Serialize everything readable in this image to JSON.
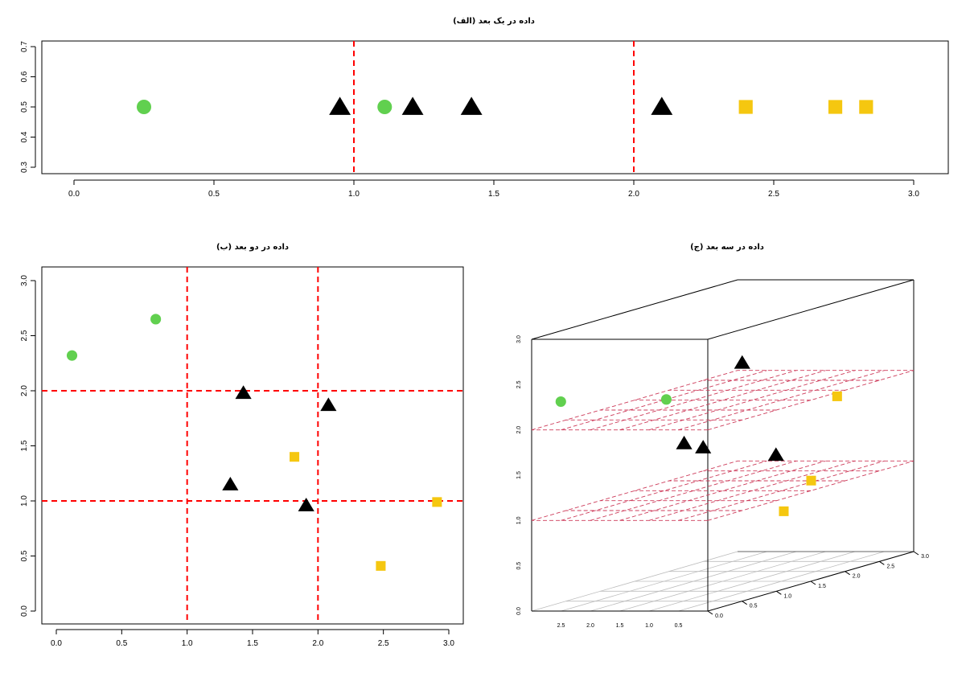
{
  "colors": {
    "group1": "#61d04f",
    "group2": "#000000",
    "group3": "#f5c710",
    "split": "#ff0000",
    "plane": "#cd3b5a"
  },
  "chart_data": [
    {
      "type": "scatter",
      "title": "داده در یک بعد (الف)",
      "xlabel": "",
      "ylabel": "",
      "xlim": [
        0,
        3
      ],
      "ylim": [
        0.3,
        0.7
      ],
      "xticks": [
        "0.0",
        "0.5",
        "1.0",
        "1.5",
        "2.0",
        "2.5",
        "3.0"
      ],
      "yticks": [
        "0.3",
        "0.4",
        "0.5",
        "0.6",
        "0.7"
      ],
      "vlines": [
        1.0,
        2.0
      ],
      "series": [
        {
          "color": "#61d04f",
          "shape": "circle",
          "points": [
            [
              0.25,
              0.5
            ],
            [
              1.11,
              0.5
            ]
          ]
        },
        {
          "color": "#000000",
          "shape": "triangle",
          "points": [
            [
              0.95,
              0.5
            ],
            [
              1.21,
              0.5
            ],
            [
              1.42,
              0.5
            ],
            [
              2.1,
              0.5
            ]
          ]
        },
        {
          "color": "#f5c710",
          "shape": "square",
          "points": [
            [
              2.4,
              0.5
            ],
            [
              2.72,
              0.5
            ],
            [
              2.83,
              0.5
            ]
          ]
        }
      ]
    },
    {
      "type": "scatter",
      "title": "داده در دو بعد (ب)",
      "xlabel": "",
      "ylabel": "",
      "xlim": [
        0,
        3
      ],
      "ylim": [
        0,
        3
      ],
      "xticks": [
        "0.0",
        "0.5",
        "1.0",
        "1.5",
        "2.0",
        "2.5",
        "3.0"
      ],
      "yticks": [
        "0.0",
        "0.5",
        "1.0",
        "1.5",
        "2.0",
        "2.5",
        "3.0"
      ],
      "vlines": [
        1.0,
        2.0
      ],
      "hlines": [
        1.0,
        2.0
      ],
      "series": [
        {
          "color": "#61d04f",
          "shape": "circle",
          "points": [
            [
              0.12,
              2.32
            ],
            [
              0.76,
              2.65
            ]
          ]
        },
        {
          "color": "#000000",
          "shape": "triangle",
          "points": [
            [
              1.43,
              1.98
            ],
            [
              2.08,
              1.87
            ],
            [
              1.33,
              1.15
            ],
            [
              1.91,
              0.96
            ]
          ]
        },
        {
          "color": "#f5c710",
          "shape": "square",
          "points": [
            [
              1.82,
              1.4
            ],
            [
              2.91,
              0.99
            ],
            [
              2.48,
              0.41
            ]
          ]
        }
      ]
    },
    {
      "type": "scatter3d",
      "title": "داده در سه بعد (ج)",
      "xlim": [
        0,
        3
      ],
      "ylim": [
        0,
        3
      ],
      "zlim": [
        0,
        3
      ],
      "xticks": [
        "2.5",
        "2.0",
        "1.5",
        "1.0",
        "0.5"
      ],
      "yticks": [
        "0.0",
        "0.5",
        "1.0",
        "1.5",
        "2.0",
        "2.5",
        "3.0"
      ],
      "zticks": [
        "0.0",
        "0.5",
        "1.0",
        "1.5",
        "2.0",
        "2.5",
        "3.0"
      ],
      "planes_z": [
        1.0,
        2.0
      ],
      "series": [
        {
          "color": "#61d04f",
          "shape": "circle",
          "points": [
            [
              2.62,
              0.1,
              2.29
            ],
            [
              1.7,
              0.85,
              2.15
            ]
          ]
        },
        {
          "color": "#000000",
          "shape": "triangle",
          "points": [
            [
              0.7,
              1.1,
              2.5
            ],
            [
              0.52,
              0.1,
              1.83
            ],
            [
              0.43,
              0.3,
              1.74
            ],
            [
              0.3,
              1.25,
              1.45
            ]
          ]
        },
        {
          "color": "#f5c710",
          "shape": "square",
          "points": [
            [
              0.31,
              2.15,
              1.9
            ],
            [
              0.11,
              1.6,
              1.09
            ],
            [
              0.05,
              1.15,
              0.85
            ]
          ]
        }
      ]
    }
  ]
}
